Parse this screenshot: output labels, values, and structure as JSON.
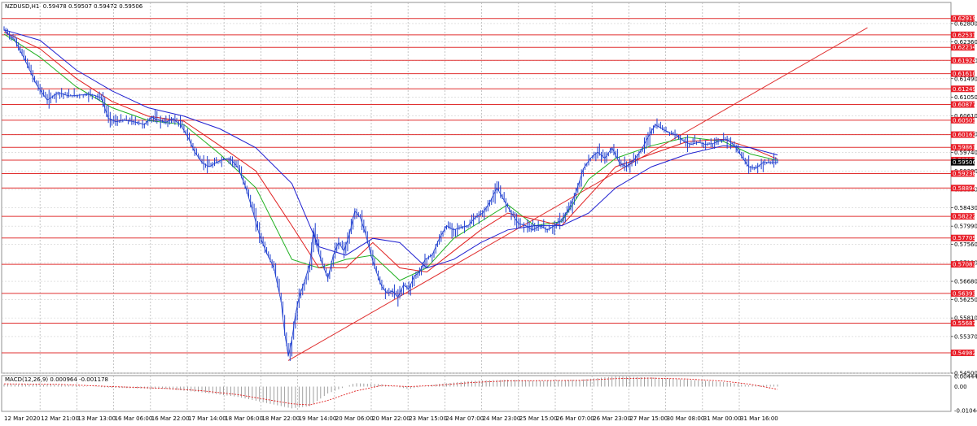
{
  "header": {
    "symbol": "NZDUSD,H1",
    "ohlc": "0.59478 0.59507 0.59472 0.59506"
  },
  "macd_header": {
    "label": "MACD(12,26,9)",
    "main": "0.000964",
    "signal": "-0.001178"
  },
  "colors": {
    "background": "#ffffff",
    "candles": "#1f3fcf",
    "level_lines": "#e03030",
    "level_tag_bg": "#e8202a",
    "trendline": "#e03030",
    "ma_fast": "#20b020",
    "ma_mid": "#e02020",
    "ma_slow": "#2020d0",
    "grid": "#b8b8b8",
    "macd_histogram": "#8a8a8a",
    "macd_signal": "#e02020"
  },
  "chart_data": {
    "type": "line",
    "title": "NZDUSD,H1",
    "ylim": [
      0.545,
      0.633
    ],
    "price_axis_ticks": [
      "0.62800",
      "0.62360",
      "0.61920",
      "0.61490",
      "0.61050",
      "0.60610",
      "0.60170",
      "0.59740",
      "0.59300",
      "0.58860",
      "0.58430",
      "0.57990",
      "0.57560",
      "0.57120",
      "0.56680",
      "0.56250",
      "0.55810",
      "0.55370",
      "0.54500"
    ],
    "time_axis_labels": [
      "12 Mar 2020",
      "12 Mar 21:00",
      "13 Mar 13:00",
      "16 Mar 06:00",
      "16 Mar 22:00",
      "17 Mar 14:00",
      "18 Mar 06:00",
      "18 Mar 22:00",
      "19 Mar 14:00",
      "20 Mar 06:00",
      "20 Mar 22:00",
      "23 Mar 15:00",
      "24 Mar 07:00",
      "24 Mar 23:00",
      "25 Mar 15:00",
      "26 Mar 07:00",
      "26 Mar 23:00",
      "27 Mar 15:00",
      "30 Mar 08:00",
      "31 Mar 00:00",
      "31 Mar 16:00"
    ],
    "horizontal_levels": [
      "0.62919",
      "0.62531",
      "0.62234",
      "0.61924",
      "0.61610",
      "0.61249",
      "0.60877",
      "0.60505",
      "0.60162",
      "0.59861",
      "0.59557",
      "0.59238",
      "0.58894",
      "0.58222",
      "0.57709",
      "0.57083",
      "0.56393",
      "0.55687",
      "0.54982"
    ],
    "current_price": "0.59506",
    "price_path": [
      [
        0,
        0.6265
      ],
      [
        6,
        0.624
      ],
      [
        12,
        0.619
      ],
      [
        18,
        0.6135
      ],
      [
        24,
        0.6098
      ],
      [
        30,
        0.6116
      ],
      [
        36,
        0.6108
      ],
      [
        42,
        0.611
      ],
      [
        48,
        0.6112
      ],
      [
        54,
        0.6104
      ],
      [
        58,
        0.6055
      ],
      [
        62,
        0.6047
      ],
      [
        66,
        0.605
      ],
      [
        70,
        0.6049
      ],
      [
        74,
        0.6045
      ],
      [
        78,
        0.604
      ],
      [
        82,
        0.6058
      ],
      [
        86,
        0.605
      ],
      [
        90,
        0.6046
      ],
      [
        94,
        0.6053
      ],
      [
        98,
        0.604
      ],
      [
        102,
        0.6012
      ],
      [
        106,
        0.5975
      ],
      [
        110,
        0.595
      ],
      [
        114,
        0.594
      ],
      [
        118,
        0.595
      ],
      [
        122,
        0.5958
      ],
      [
        126,
        0.5958
      ],
      [
        130,
        0.5938
      ],
      [
        134,
        0.5895
      ],
      [
        138,
        0.5838
      ],
      [
        142,
        0.5778
      ],
      [
        146,
        0.5735
      ],
      [
        150,
        0.57
      ],
      [
        154,
        0.562
      ],
      [
        156,
        0.5545
      ],
      [
        158,
        0.549
      ],
      [
        160,
        0.553
      ],
      [
        162,
        0.559
      ],
      [
        164,
        0.563
      ],
      [
        167,
        0.5668
      ],
      [
        170,
        0.571
      ],
      [
        172,
        0.579
      ],
      [
        174,
        0.5748
      ],
      [
        177,
        0.5708
      ],
      [
        180,
        0.5675
      ],
      [
        183,
        0.573
      ],
      [
        186,
        0.576
      ],
      [
        189,
        0.574
      ],
      [
        192,
        0.578
      ],
      [
        195,
        0.5835
      ],
      [
        198,
        0.582
      ],
      [
        201,
        0.578
      ],
      [
        204,
        0.573
      ],
      [
        207,
        0.569
      ],
      [
        210,
        0.5655
      ],
      [
        213,
        0.564
      ],
      [
        216,
        0.5645
      ],
      [
        219,
        0.563
      ],
      [
        222,
        0.566
      ],
      [
        225,
        0.565
      ],
      [
        228,
        0.568
      ],
      [
        231,
        0.569
      ],
      [
        234,
        0.572
      ],
      [
        238,
        0.573
      ],
      [
        242,
        0.577
      ],
      [
        246,
        0.58
      ],
      [
        250,
        0.579
      ],
      [
        254,
        0.5796
      ],
      [
        258,
        0.58
      ],
      [
        262,
        0.582
      ],
      [
        266,
        0.583
      ],
      [
        270,
        0.5855
      ],
      [
        274,
        0.589
      ],
      [
        278,
        0.586
      ],
      [
        282,
        0.583
      ],
      [
        286,
        0.5805
      ],
      [
        290,
        0.58
      ],
      [
        294,
        0.579
      ],
      [
        298,
        0.58
      ],
      [
        302,
        0.579
      ],
      [
        306,
        0.58
      ],
      [
        310,
        0.5815
      ],
      [
        314,
        0.584
      ],
      [
        318,
        0.588
      ],
      [
        322,
        0.5935
      ],
      [
        326,
        0.596
      ],
      [
        330,
        0.5975
      ],
      [
        334,
        0.596
      ],
      [
        338,
        0.5985
      ],
      [
        342,
        0.595
      ],
      [
        346,
        0.594
      ],
      [
        350,
        0.5955
      ],
      [
        354,
        0.5978
      ],
      [
        358,
        0.601
      ],
      [
        362,
        0.604
      ],
      [
        366,
        0.603
      ],
      [
        370,
        0.602
      ],
      [
        374,
        0.6015
      ],
      [
        378,
        0.6
      ],
      [
        382,
        0.5993
      ],
      [
        386,
        0.5998
      ],
      [
        390,
        0.5993
      ],
      [
        394,
        0.5995
      ],
      [
        398,
        0.6002
      ],
      [
        402,
        0.6005
      ],
      [
        406,
        0.599
      ],
      [
        410,
        0.5965
      ],
      [
        414,
        0.594
      ],
      [
        418,
        0.5937
      ],
      [
        422,
        0.595
      ],
      [
        426,
        0.595
      ],
      [
        430,
        0.595
      ]
    ],
    "moving_averages": [
      {
        "color": "#20b020",
        "values": [
          [
            0,
            0.6255
          ],
          [
            20,
            0.62
          ],
          [
            40,
            0.613
          ],
          [
            60,
            0.608
          ],
          [
            80,
            0.605
          ],
          [
            100,
            0.604
          ],
          [
            120,
            0.597
          ],
          [
            140,
            0.589
          ],
          [
            160,
            0.572
          ],
          [
            175,
            0.57
          ],
          [
            190,
            0.572
          ],
          [
            205,
            0.573
          ],
          [
            220,
            0.567
          ],
          [
            235,
            0.57
          ],
          [
            250,
            0.577
          ],
          [
            265,
            0.581
          ],
          [
            280,
            0.585
          ],
          [
            295,
            0.58
          ],
          [
            310,
            0.581
          ],
          [
            325,
            0.591
          ],
          [
            340,
            0.596
          ],
          [
            360,
            0.599
          ],
          [
            380,
            0.601
          ],
          [
            400,
            0.6
          ],
          [
            415,
            0.597
          ],
          [
            430,
            0.5955
          ]
        ]
      },
      {
        "color": "#e02020",
        "values": [
          [
            0,
            0.626
          ],
          [
            20,
            0.622
          ],
          [
            40,
            0.615
          ],
          [
            60,
            0.6095
          ],
          [
            80,
            0.606
          ],
          [
            100,
            0.6048
          ],
          [
            120,
            0.599
          ],
          [
            140,
            0.593
          ],
          [
            160,
            0.58
          ],
          [
            175,
            0.57
          ],
          [
            190,
            0.57
          ],
          [
            205,
            0.576
          ],
          [
            220,
            0.57
          ],
          [
            235,
            0.569
          ],
          [
            250,
            0.574
          ],
          [
            265,
            0.579
          ],
          [
            280,
            0.583
          ],
          [
            295,
            0.5815
          ],
          [
            310,
            0.58
          ],
          [
            325,
            0.587
          ],
          [
            340,
            0.594
          ],
          [
            360,
            0.597
          ],
          [
            380,
            0.6
          ],
          [
            400,
            0.6005
          ],
          [
            415,
            0.5985
          ],
          [
            430,
            0.5958
          ]
        ]
      },
      {
        "color": "#2020d0",
        "values": [
          [
            0,
            0.6265
          ],
          [
            20,
            0.624
          ],
          [
            40,
            0.617
          ],
          [
            60,
            0.612
          ],
          [
            80,
            0.608
          ],
          [
            100,
            0.606
          ],
          [
            120,
            0.603
          ],
          [
            140,
            0.5985
          ],
          [
            160,
            0.59
          ],
          [
            175,
            0.575
          ],
          [
            190,
            0.573
          ],
          [
            205,
            0.577
          ],
          [
            220,
            0.576
          ],
          [
            235,
            0.57
          ],
          [
            250,
            0.572
          ],
          [
            265,
            0.576
          ],
          [
            280,
            0.579
          ],
          [
            295,
            0.58
          ],
          [
            310,
            0.58
          ],
          [
            325,
            0.583
          ],
          [
            340,
            0.589
          ],
          [
            360,
            0.594
          ],
          [
            380,
            0.597
          ],
          [
            400,
            0.599
          ],
          [
            415,
            0.5985
          ],
          [
            430,
            0.5968
          ]
        ]
      }
    ],
    "trendline": [
      [
        158,
        0.548
      ],
      [
        480,
        0.627
      ]
    ],
    "macd": {
      "ylim": [
        -0.010448,
        0.004449
      ],
      "ticks": [
        "0.004449",
        "0.00",
        "-0.010448"
      ],
      "histogram": [
        [
          0,
          0.001
        ],
        [
          30,
          0.0008
        ],
        [
          60,
          -0.0005
        ],
        [
          90,
          -0.001
        ],
        [
          110,
          -0.0025
        ],
        [
          130,
          -0.0045
        ],
        [
          145,
          -0.007
        ],
        [
          160,
          -0.0095
        ],
        [
          170,
          -0.0085
        ],
        [
          180,
          -0.003
        ],
        [
          195,
          0.0015
        ],
        [
          210,
          0.001
        ],
        [
          225,
          -0.001
        ],
        [
          240,
          0.001
        ],
        [
          260,
          0.0025
        ],
        [
          280,
          0.003
        ],
        [
          300,
          0.0025
        ],
        [
          320,
          0.003
        ],
        [
          340,
          0.0045
        ],
        [
          360,
          0.004
        ],
        [
          380,
          0.003
        ],
        [
          400,
          0.002
        ],
        [
          415,
          0.0005
        ],
        [
          430,
          0.0009
        ]
      ],
      "signal": [
        [
          0,
          0.0012
        ],
        [
          30,
          0.001
        ],
        [
          60,
          0.0
        ],
        [
          90,
          -0.0008
        ],
        [
          110,
          -0.0018
        ],
        [
          130,
          -0.0035
        ],
        [
          145,
          -0.0055
        ],
        [
          160,
          -0.0075
        ],
        [
          170,
          -0.008
        ],
        [
          180,
          -0.006
        ],
        [
          195,
          -0.002
        ],
        [
          210,
          0.0005
        ],
        [
          225,
          0.0
        ],
        [
          240,
          0.0005
        ],
        [
          260,
          0.0018
        ],
        [
          280,
          0.0025
        ],
        [
          300,
          0.0026
        ],
        [
          320,
          0.0027
        ],
        [
          340,
          0.0035
        ],
        [
          360,
          0.0037
        ],
        [
          380,
          0.0033
        ],
        [
          400,
          0.0024
        ],
        [
          415,
          0.001
        ],
        [
          430,
          -0.0012
        ]
      ]
    }
  }
}
